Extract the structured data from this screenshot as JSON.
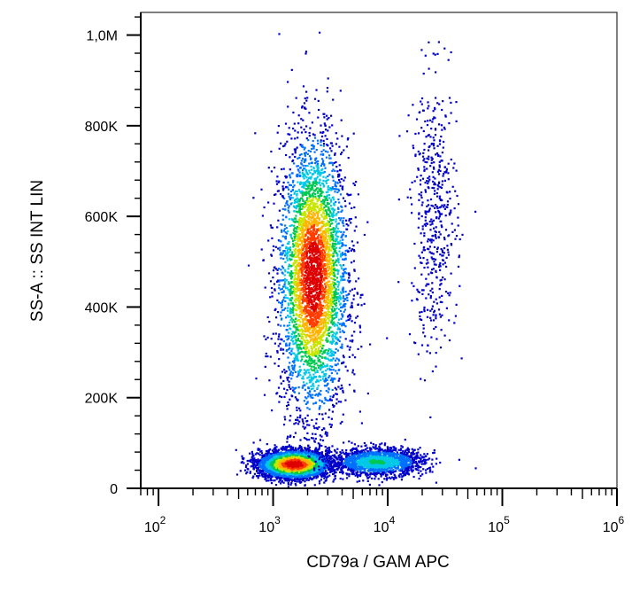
{
  "chart_data": {
    "type": "scatter",
    "subtype": "flow-cytometry-density-dot-plot",
    "title": "",
    "xlabel": "CD79a / GAM APC",
    "ylabel": "SS-A :: SS INT LIN",
    "x_scale": "log",
    "xlim": [
      70,
      1000000
    ],
    "ylim": [
      0,
      1050000
    ],
    "x_ticks": [
      {
        "value": 100,
        "base": "10",
        "exp": "2"
      },
      {
        "value": 1000,
        "base": "10",
        "exp": "3"
      },
      {
        "value": 10000,
        "base": "10",
        "exp": "4"
      },
      {
        "value": 100000,
        "base": "10",
        "exp": "5"
      },
      {
        "value": 1000000,
        "base": "10",
        "exp": "6"
      }
    ],
    "y_ticks": [
      {
        "value": 0,
        "label": "0"
      },
      {
        "value": 200000,
        "label": "200K"
      },
      {
        "value": 400000,
        "label": "400K"
      },
      {
        "value": 600000,
        "label": "600K"
      },
      {
        "value": 800000,
        "label": "800K"
      },
      {
        "value": 1000000,
        "label": "1,0M"
      }
    ],
    "grid": false,
    "legend": "none",
    "color_scale": [
      "#0000c8",
      "#0070ff",
      "#00c8e6",
      "#00c850",
      "#c8e600",
      "#ffb400",
      "#ff3c00",
      "#dc0000"
    ],
    "populations": [
      {
        "x_center": 2200,
        "y_center": 470000,
        "x_spread_decades": 0.15,
        "y_spread": 150000,
        "peak_density": 1.0
      },
      {
        "x_center": 1500,
        "y_center": 55000,
        "x_spread_decades": 0.15,
        "y_spread": 15000,
        "peak_density": 1.0
      },
      {
        "x_center": 8000,
        "y_center": 60000,
        "x_spread_decades": 0.2,
        "y_spread": 15000,
        "peak_density": 0.4
      },
      {
        "x_center": 25000,
        "y_center": 600000,
        "x_spread_decades": 0.1,
        "y_spread": 150000,
        "peak_density": 0.12
      }
    ]
  }
}
